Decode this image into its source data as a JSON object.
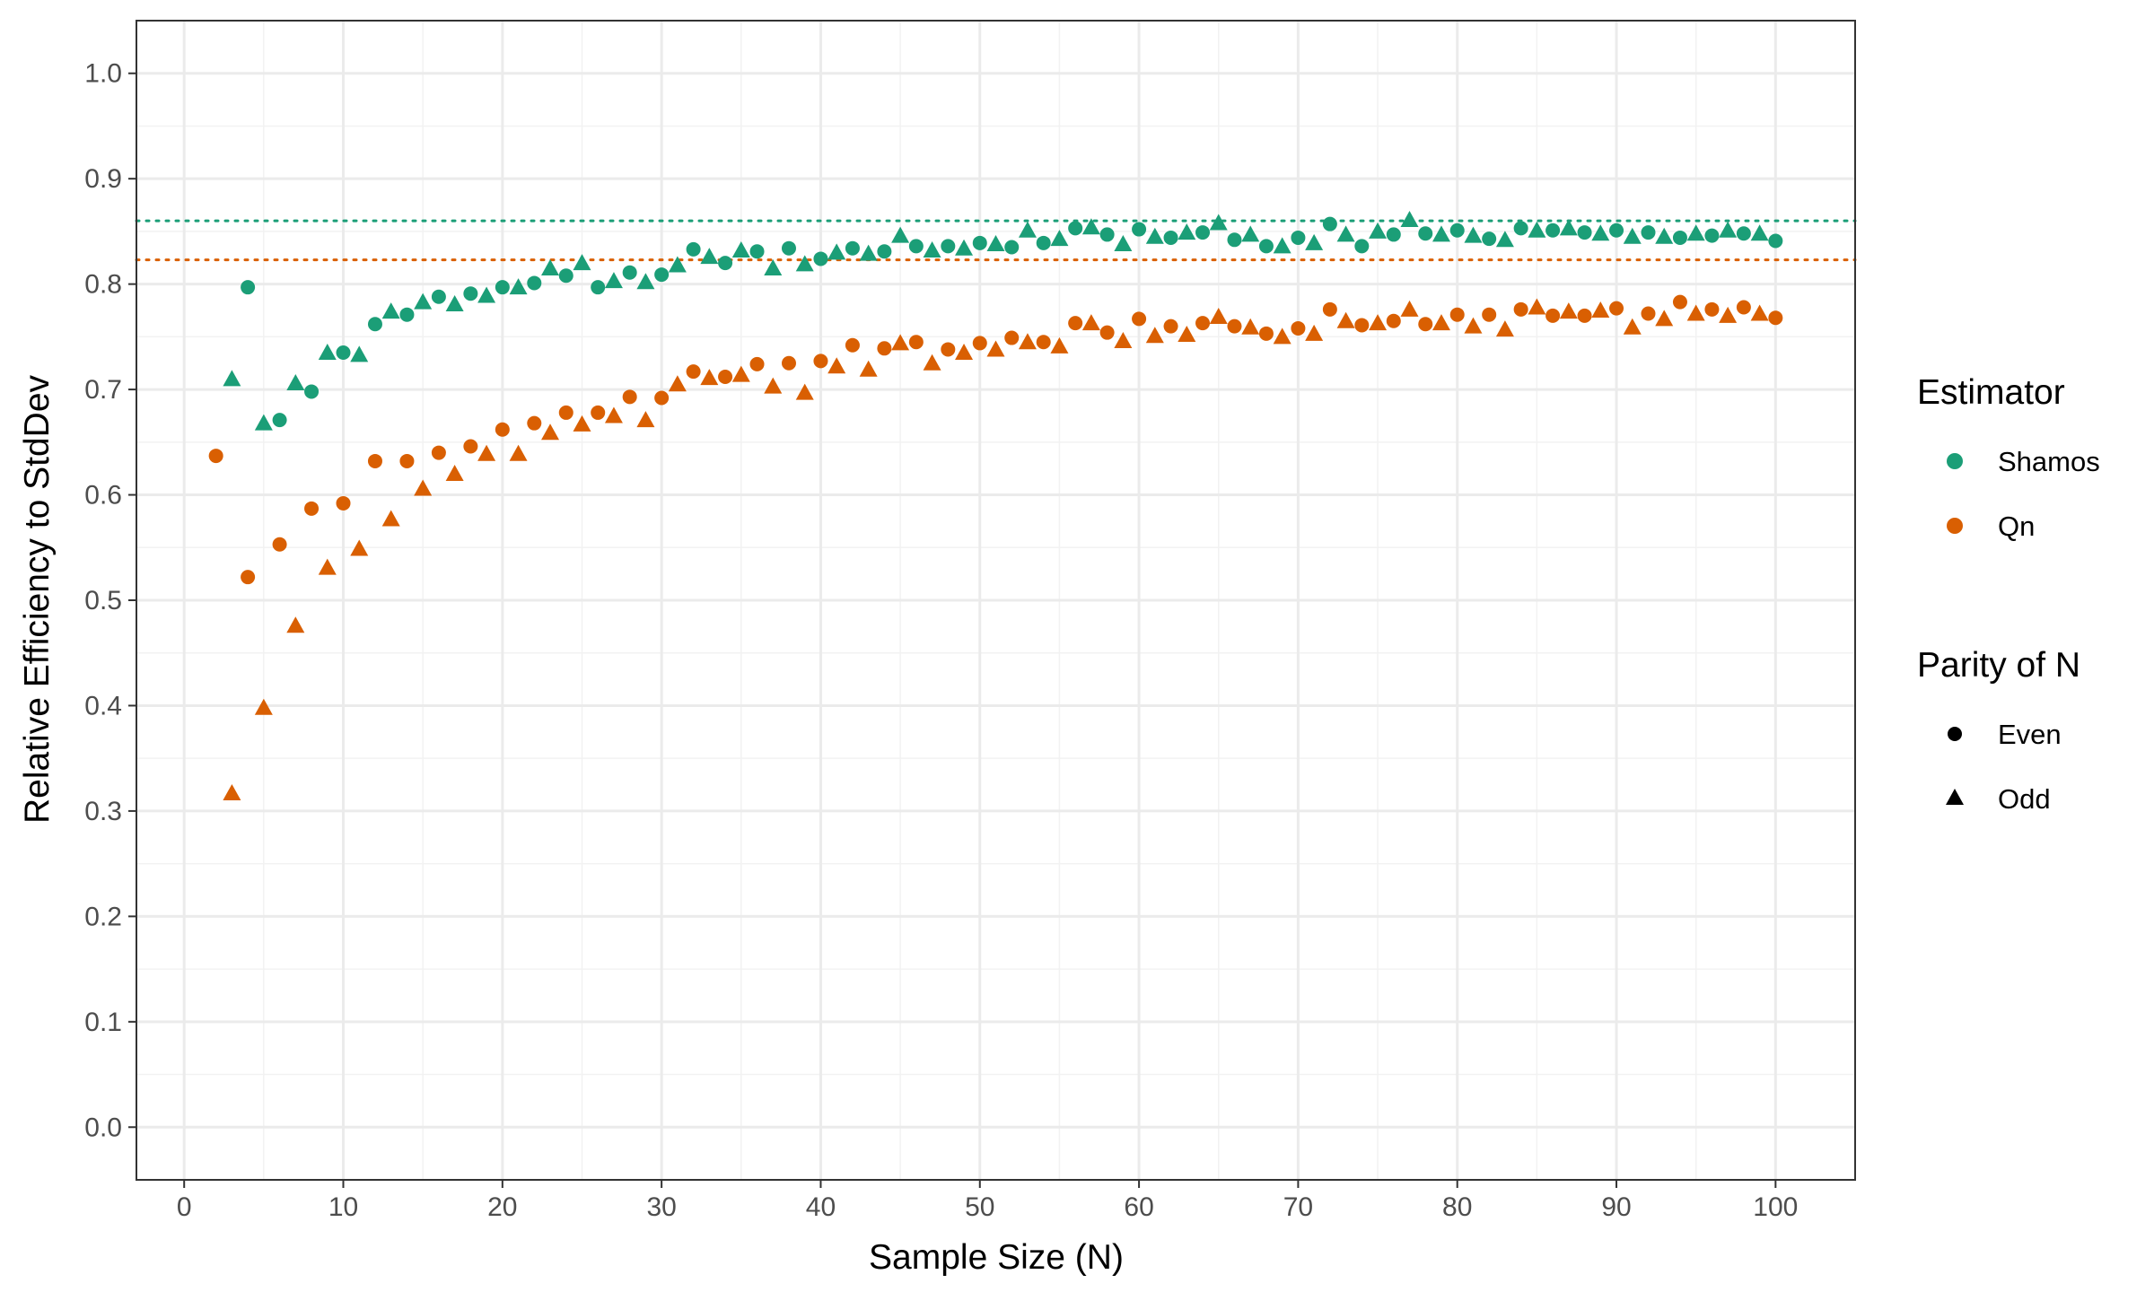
{
  "chart_data": {
    "type": "scatter",
    "xlabel": "Sample Size (N)",
    "ylabel": "Relative Efficiency to StdDev",
    "xlim": [
      -3,
      105
    ],
    "ylim": [
      -0.05,
      1.05
    ],
    "x_ticks": [
      0,
      10,
      20,
      30,
      40,
      50,
      60,
      70,
      80,
      90,
      100
    ],
    "y_ticks": [
      0.0,
      0.1,
      0.2,
      0.3,
      0.4,
      0.5,
      0.6,
      0.7,
      0.8,
      0.9,
      1.0
    ],
    "x_tick_labels": [
      "0",
      "10",
      "20",
      "30",
      "40",
      "50",
      "60",
      "70",
      "80",
      "90",
      "100"
    ],
    "y_tick_labels": [
      "0.0",
      "0.1",
      "0.2",
      "0.3",
      "0.4",
      "0.5",
      "0.6",
      "0.7",
      "0.8",
      "0.9",
      "1.0"
    ],
    "grid": true,
    "legend_position": "right",
    "legend": {
      "color_title": "Estimator",
      "shape_title": "Parity of N",
      "color_entries": [
        {
          "label": "Shamos",
          "color": "#1b9e77"
        },
        {
          "label": "Qn",
          "color": "#d95f02"
        }
      ],
      "shape_entries": [
        {
          "label": "Even",
          "shape": "circle"
        },
        {
          "label": "Odd",
          "shape": "triangle"
        }
      ]
    },
    "reference_lines": [
      {
        "estimator": "Shamos",
        "y": 0.86,
        "color": "#1b9e77",
        "style": "dotted"
      },
      {
        "estimator": "Qn",
        "y": 0.823,
        "color": "#d95f02",
        "style": "dotted"
      }
    ],
    "series": [
      {
        "name": "Shamos",
        "color": "#1b9e77",
        "x": [
          3,
          4,
          5,
          6,
          7,
          8,
          9,
          10,
          11,
          12,
          13,
          14,
          15,
          16,
          17,
          18,
          19,
          20,
          21,
          22,
          23,
          24,
          25,
          26,
          27,
          28,
          29,
          30,
          31,
          32,
          33,
          34,
          35,
          36,
          37,
          38,
          39,
          40,
          41,
          42,
          43,
          44,
          45,
          46,
          47,
          48,
          49,
          50,
          51,
          52,
          53,
          54,
          55,
          56,
          57,
          58,
          59,
          60,
          61,
          62,
          63,
          64,
          65,
          66,
          67,
          68,
          69,
          70,
          71,
          72,
          73,
          74,
          75,
          76,
          77,
          78,
          79,
          80,
          81,
          82,
          83,
          84,
          85,
          86,
          87,
          88,
          89,
          90,
          91,
          92,
          93,
          94,
          95,
          96,
          97,
          98,
          99,
          100
        ],
        "y": [
          0.71,
          0.797,
          0.668,
          0.671,
          0.706,
          0.698,
          0.735,
          0.735,
          0.733,
          0.762,
          0.774,
          0.771,
          0.783,
          0.788,
          0.781,
          0.791,
          0.789,
          0.797,
          0.797,
          0.801,
          0.815,
          0.808,
          0.82,
          0.797,
          0.803,
          0.811,
          0.802,
          0.809,
          0.818,
          0.833,
          0.826,
          0.82,
          0.832,
          0.831,
          0.815,
          0.834,
          0.819,
          0.824,
          0.83,
          0.834,
          0.829,
          0.831,
          0.846,
          0.836,
          0.832,
          0.836,
          0.834,
          0.839,
          0.838,
          0.835,
          0.851,
          0.839,
          0.843,
          0.853,
          0.854,
          0.847,
          0.838,
          0.852,
          0.845,
          0.844,
          0.849,
          0.849,
          0.858,
          0.842,
          0.847,
          0.836,
          0.836,
          0.844,
          0.839,
          0.857,
          0.847,
          0.836,
          0.85,
          0.847,
          0.861,
          0.848,
          0.847,
          0.851,
          0.846,
          0.843,
          0.842,
          0.853,
          0.851,
          0.851,
          0.853,
          0.849,
          0.848,
          0.851,
          0.845,
          0.849,
          0.845,
          0.844,
          0.848,
          0.846,
          0.851,
          0.848,
          0.848,
          0.841
        ]
      },
      {
        "name": "Qn",
        "color": "#d95f02",
        "x": [
          2,
          3,
          4,
          5,
          6,
          7,
          8,
          9,
          10,
          11,
          12,
          13,
          14,
          15,
          16,
          17,
          18,
          19,
          20,
          21,
          22,
          23,
          24,
          25,
          26,
          27,
          28,
          29,
          30,
          31,
          32,
          33,
          34,
          35,
          36,
          37,
          38,
          39,
          40,
          41,
          42,
          43,
          44,
          45,
          46,
          47,
          48,
          49,
          50,
          51,
          52,
          53,
          54,
          55,
          56,
          57,
          58,
          59,
          60,
          61,
          62,
          63,
          64,
          65,
          66,
          67,
          68,
          69,
          70,
          71,
          72,
          73,
          74,
          75,
          76,
          77,
          78,
          79,
          80,
          81,
          82,
          83,
          84,
          85,
          86,
          87,
          88,
          89,
          90,
          91,
          92,
          93,
          94,
          95,
          96,
          97,
          98,
          99,
          100
        ],
        "y": [
          0.637,
          0.317,
          0.522,
          0.398,
          0.553,
          0.476,
          0.587,
          0.531,
          0.592,
          0.549,
          0.632,
          0.577,
          0.632,
          0.606,
          0.64,
          0.62,
          0.646,
          0.639,
          0.662,
          0.639,
          0.668,
          0.659,
          0.678,
          0.667,
          0.678,
          0.675,
          0.693,
          0.671,
          0.692,
          0.705,
          0.717,
          0.711,
          0.712,
          0.714,
          0.724,
          0.703,
          0.725,
          0.697,
          0.727,
          0.722,
          0.742,
          0.719,
          0.739,
          0.744,
          0.745,
          0.725,
          0.738,
          0.735,
          0.744,
          0.738,
          0.749,
          0.745,
          0.745,
          0.741,
          0.763,
          0.763,
          0.754,
          0.746,
          0.767,
          0.751,
          0.76,
          0.752,
          0.763,
          0.769,
          0.76,
          0.759,
          0.753,
          0.75,
          0.758,
          0.753,
          0.776,
          0.765,
          0.761,
          0.763,
          0.765,
          0.776,
          0.762,
          0.763,
          0.771,
          0.76,
          0.771,
          0.757,
          0.776,
          0.778,
          0.77,
          0.774,
          0.77,
          0.775,
          0.777,
          0.759,
          0.772,
          0.767,
          0.783,
          0.772,
          0.776,
          0.77,
          0.778,
          0.772,
          0.768
        ]
      }
    ]
  }
}
